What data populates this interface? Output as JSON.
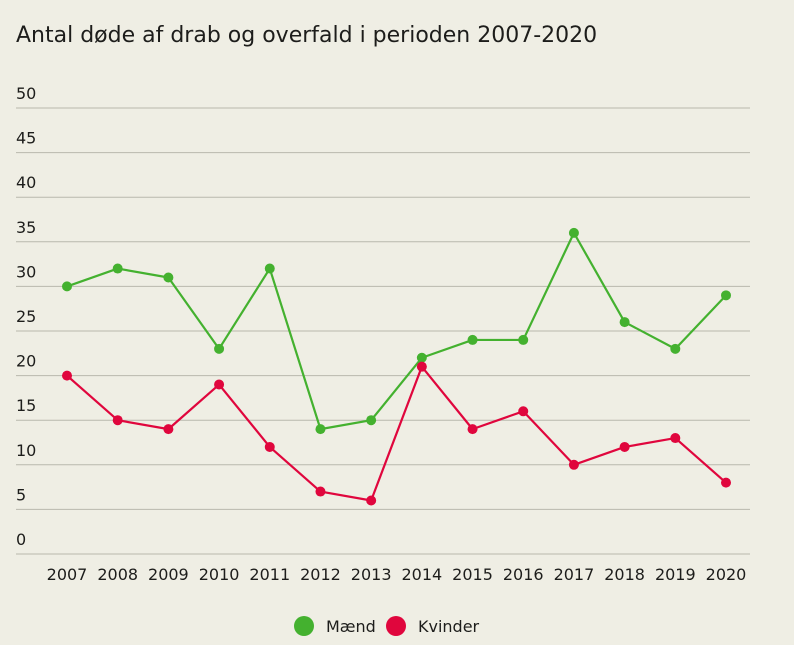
{
  "chart_data": {
    "type": "line",
    "title": "Antal døde af drab og overfald i perioden 2007-2020",
    "xlabel": "",
    "ylabel": "",
    "x": [
      "2007",
      "2008",
      "2009",
      "2010",
      "2011",
      "2012",
      "2013",
      "2014",
      "2015",
      "2016",
      "2017",
      "2018",
      "2019",
      "2020"
    ],
    "ylim": [
      0,
      50
    ],
    "yticks": [
      0,
      5,
      10,
      15,
      20,
      25,
      30,
      35,
      40,
      45,
      50
    ],
    "grid": true,
    "legend_position": "bottom-center",
    "series": [
      {
        "name": "Mænd",
        "color": "#44b12f",
        "values": [
          30,
          32,
          31,
          23,
          32,
          14,
          15,
          22,
          24,
          24,
          36,
          26,
          23,
          29
        ]
      },
      {
        "name": "Kvinder",
        "color": "#e0063d",
        "values": [
          20,
          15,
          14,
          19,
          12,
          7,
          6,
          21,
          14,
          16,
          10,
          12,
          13,
          8
        ]
      }
    ]
  }
}
